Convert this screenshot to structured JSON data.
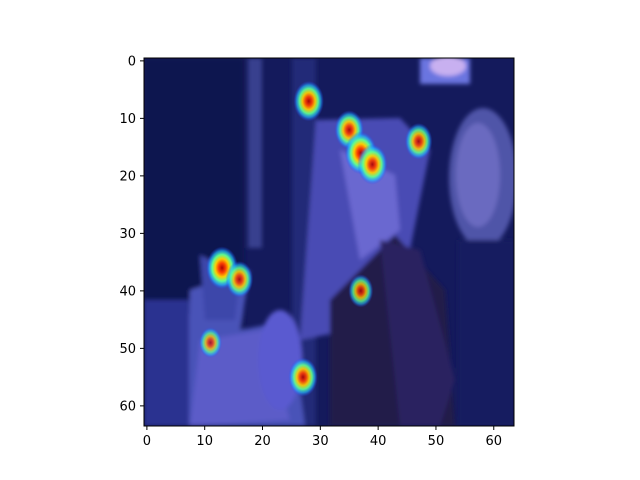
{
  "chart_data": {
    "type": "heatmap",
    "title": "",
    "xlabel": "",
    "ylabel": "",
    "xlim": [
      -0.5,
      63.5
    ],
    "ylim": [
      63.5,
      -0.5
    ],
    "grid": false,
    "colormap": "jet overlay on image",
    "x_ticks": [
      0,
      10,
      20,
      30,
      40,
      50,
      60
    ],
    "y_ticks": [
      0,
      10,
      20,
      30,
      40,
      50,
      60
    ],
    "x_tick_labels": [
      "0",
      "10",
      "20",
      "30",
      "40",
      "50",
      "60"
    ],
    "y_tick_labels": [
      "0",
      "10",
      "20",
      "30",
      "40",
      "50",
      "60"
    ],
    "hotspots": [
      {
        "x": 28,
        "y": 7,
        "intensity": 0.85
      },
      {
        "x": 35,
        "y": 12,
        "intensity": 0.8
      },
      {
        "x": 37,
        "y": 16,
        "intensity": 0.95
      },
      {
        "x": 39,
        "y": 18,
        "intensity": 0.85
      },
      {
        "x": 47,
        "y": 14,
        "intensity": 0.7
      },
      {
        "x": 13,
        "y": 36,
        "intensity": 0.95
      },
      {
        "x": 16,
        "y": 38,
        "intensity": 0.7
      },
      {
        "x": 27,
        "y": 55,
        "intensity": 0.8
      },
      {
        "x": 37,
        "y": 40,
        "intensity": 0.55
      },
      {
        "x": 11,
        "y": 49,
        "intensity": 0.45
      }
    ],
    "colors": {
      "base": "#141a5c",
      "dark": "#0a0e3a",
      "highlight": "#7a78d8",
      "axis": "#000000"
    }
  }
}
